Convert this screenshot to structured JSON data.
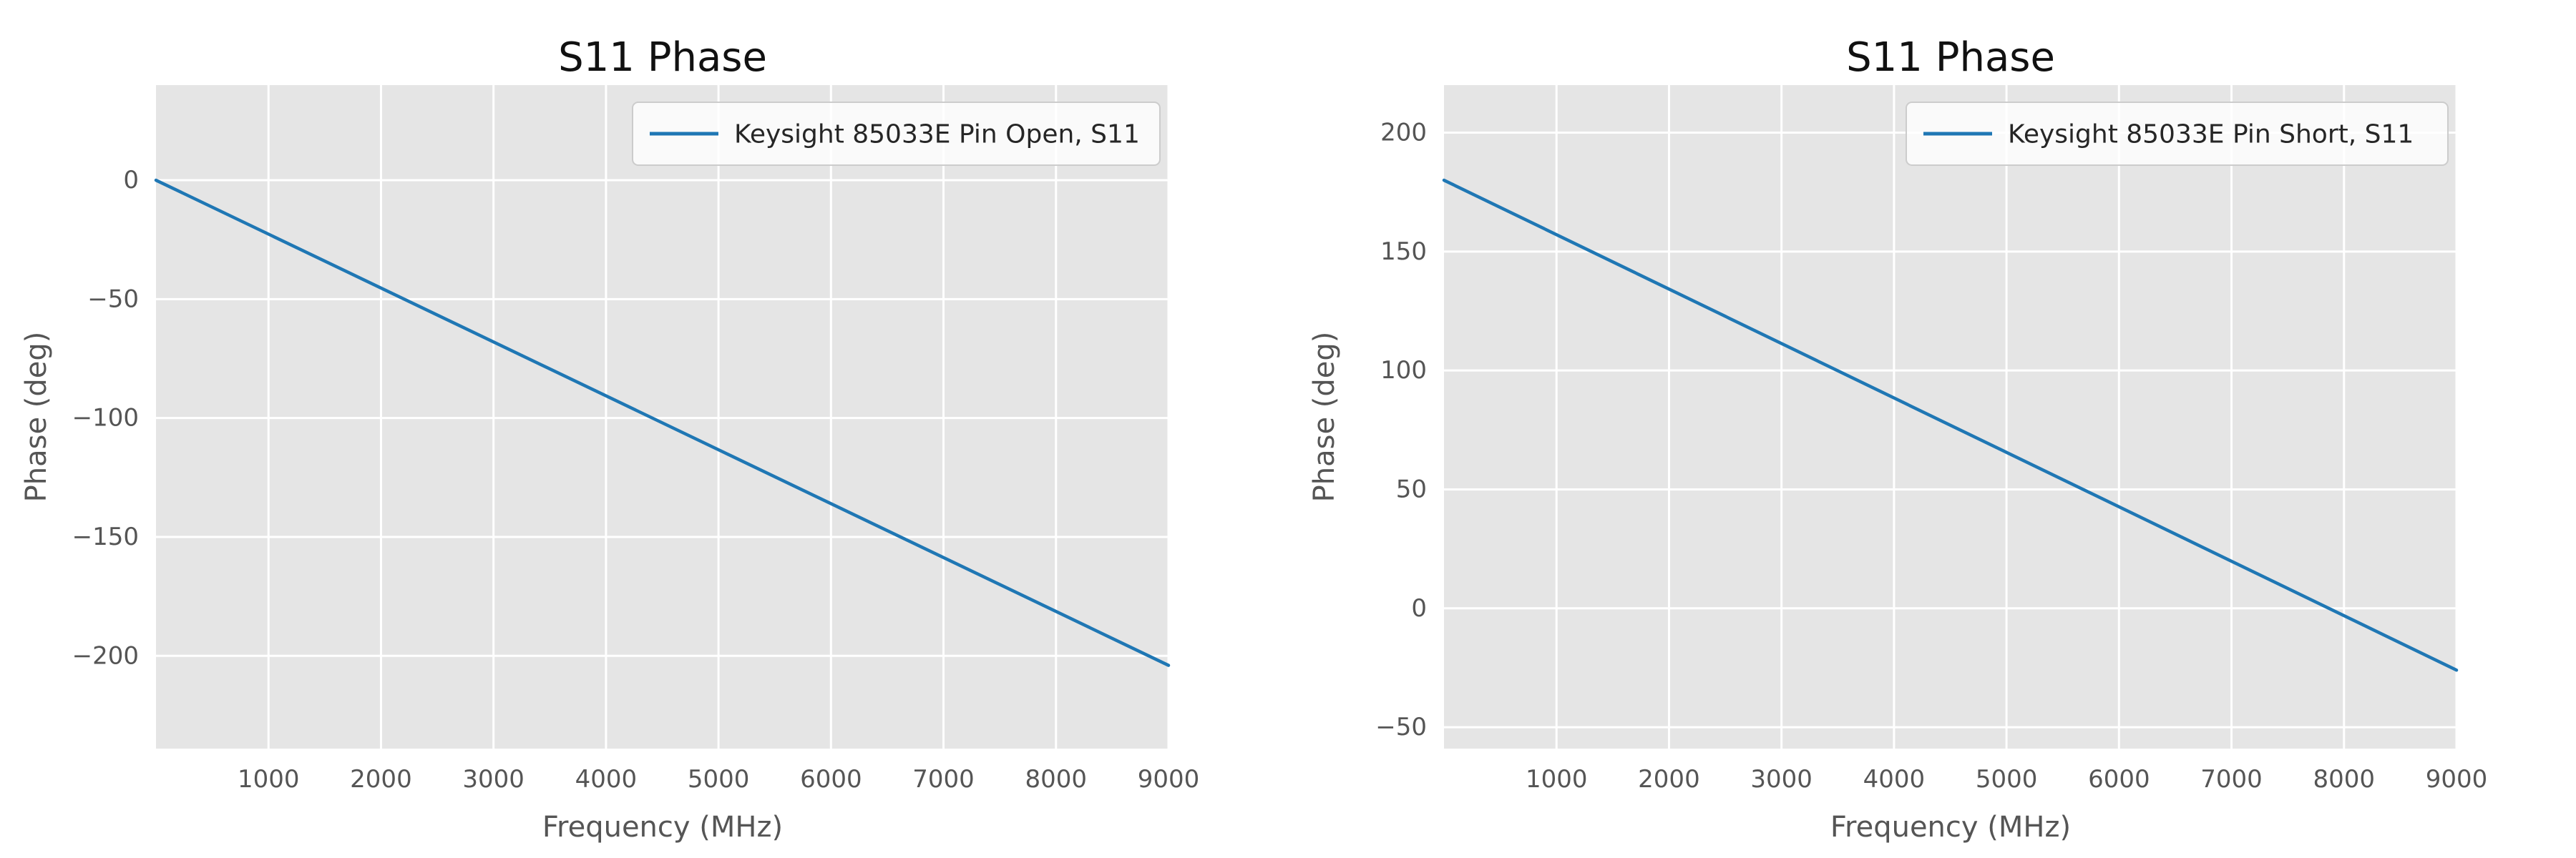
{
  "figure": {
    "background": "#ffffff",
    "plot_background": "#e5e5e5",
    "grid_color": "#ffffff",
    "tick_text_color": "#555555",
    "title_color": "#111111",
    "legend_text_color": "#262626"
  },
  "chart_data": [
    {
      "type": "line",
      "title": "S11 Phase",
      "xlabel": "Frequency (MHz)",
      "ylabel": "Phase (deg)",
      "xlim": [
        0,
        9000
      ],
      "ylim": [
        -239,
        40
      ],
      "xticks": [
        1000,
        2000,
        3000,
        4000,
        5000,
        6000,
        7000,
        8000,
        9000
      ],
      "yticks": [
        0,
        -50,
        -100,
        -150,
        -200
      ],
      "grid": true,
      "legend_position": "upper right",
      "series": [
        {
          "name": "Keysight 85033E Pin Open, S11",
          "color": "#1f77b4",
          "points": [
            [
              0,
              0
            ],
            [
              9000,
              -204
            ]
          ]
        }
      ]
    },
    {
      "type": "line",
      "title": "S11 Phase",
      "xlabel": "Frequency (MHz)",
      "ylabel": "Phase (deg)",
      "xlim": [
        0,
        9000
      ],
      "ylim": [
        -59,
        220
      ],
      "xticks": [
        1000,
        2000,
        3000,
        4000,
        5000,
        6000,
        7000,
        8000,
        9000
      ],
      "yticks": [
        200,
        150,
        100,
        50,
        0,
        -50
      ],
      "grid": true,
      "legend_position": "upper right",
      "series": [
        {
          "name": "Keysight 85033E Pin Short, S11",
          "color": "#1f77b4",
          "points": [
            [
              0,
              180
            ],
            [
              9000,
              -26
            ]
          ]
        }
      ]
    }
  ]
}
